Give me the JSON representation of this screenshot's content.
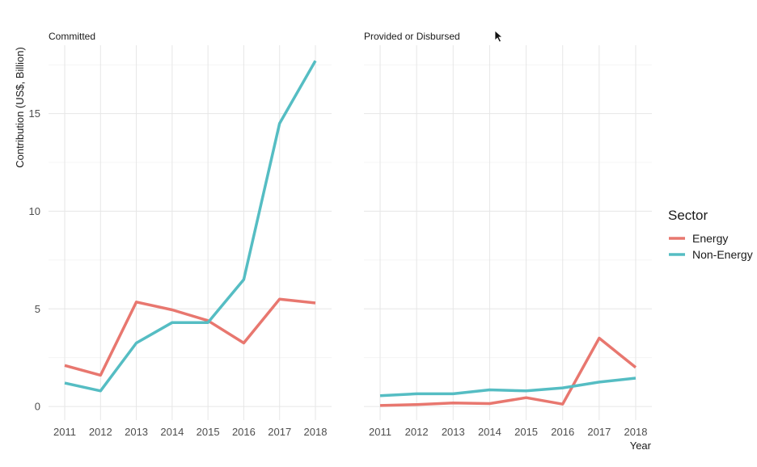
{
  "chart_data": {
    "type": "line",
    "xlabel": "Year",
    "ylabel": "Contribution (US$, Billion)",
    "x": [
      "2011",
      "2012",
      "2013",
      "2014",
      "2015",
      "2016",
      "2017",
      "2018"
    ],
    "ylim": [
      -0.7,
      18.5
    ],
    "yticks": [
      0,
      5,
      10,
      15
    ],
    "grid": true,
    "legend": {
      "title": "Sector",
      "position": "right",
      "entries": [
        "Energy",
        "Non-Energy"
      ]
    },
    "series_colors": {
      "Energy": "#e8776f",
      "Non-Energy": "#55bdc3"
    },
    "panels": [
      {
        "title": "Committed",
        "series": [
          {
            "name": "Energy",
            "values": [
              2.1,
              1.6,
              5.35,
              4.95,
              4.4,
              3.25,
              5.5,
              5.3
            ]
          },
          {
            "name": "Non-Energy",
            "values": [
              1.2,
              0.8,
              3.25,
              4.3,
              4.3,
              6.5,
              14.5,
              17.7
            ]
          }
        ]
      },
      {
        "title": "Provided or Disbursed",
        "series": [
          {
            "name": "Energy",
            "values": [
              0.05,
              0.1,
              0.18,
              0.15,
              0.45,
              0.12,
              3.5,
              2.0
            ]
          },
          {
            "name": "Non-Energy",
            "values": [
              0.55,
              0.65,
              0.65,
              0.85,
              0.8,
              0.95,
              1.25,
              1.45
            ]
          }
        ]
      }
    ]
  }
}
